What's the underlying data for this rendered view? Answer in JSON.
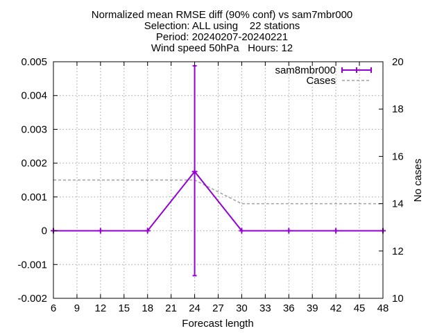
{
  "chart_data": {
    "type": "line",
    "title_lines": [
      "Normalized mean RMSE diff (90% conf) vs sam7mbr000",
      "Selection: ALL using    22 stations",
      "Period: 20240207-20240221",
      "Wind speed 50hPa   Hours: 12"
    ],
    "xlabel": "Forecast length",
    "ylabel": "",
    "y2label": "No cases",
    "xlim": [
      6,
      48
    ],
    "ylim": [
      -0.002,
      0.005
    ],
    "y2lim": [
      10,
      20
    ],
    "x_ticks": [
      "6",
      "9",
      "12",
      "15",
      "18",
      "21",
      "24",
      "27",
      "30",
      "33",
      "36",
      "39",
      "42",
      "45",
      "48"
    ],
    "y_ticks": [
      "-0.002",
      "-0.001",
      "0",
      "0.001",
      "0.002",
      "0.003",
      "0.004",
      "0.005"
    ],
    "y2_ticks": [
      "10",
      "12",
      "14",
      "16",
      "18",
      "20"
    ],
    "grid": true,
    "legend_position": "top-right",
    "series": [
      {
        "name": "sam8mbr000",
        "axis": "y",
        "color": "#9400d3",
        "x": [
          6,
          12,
          18,
          24,
          30,
          36,
          42,
          48
        ],
        "values": [
          0,
          0,
          0,
          0.00175,
          0,
          0,
          0,
          0
        ],
        "err_low": [
          0,
          0,
          0,
          -0.00133,
          0,
          0,
          0,
          0
        ],
        "err_high": [
          0,
          0,
          0,
          0.00488,
          0,
          0,
          0,
          0
        ]
      },
      {
        "name": "Cases",
        "axis": "y2",
        "color": "#a0a0a0",
        "x": [
          6,
          12,
          18,
          24,
          30,
          36,
          42,
          48
        ],
        "values": [
          15,
          15,
          15,
          15,
          14,
          14,
          14,
          14
        ]
      }
    ]
  }
}
